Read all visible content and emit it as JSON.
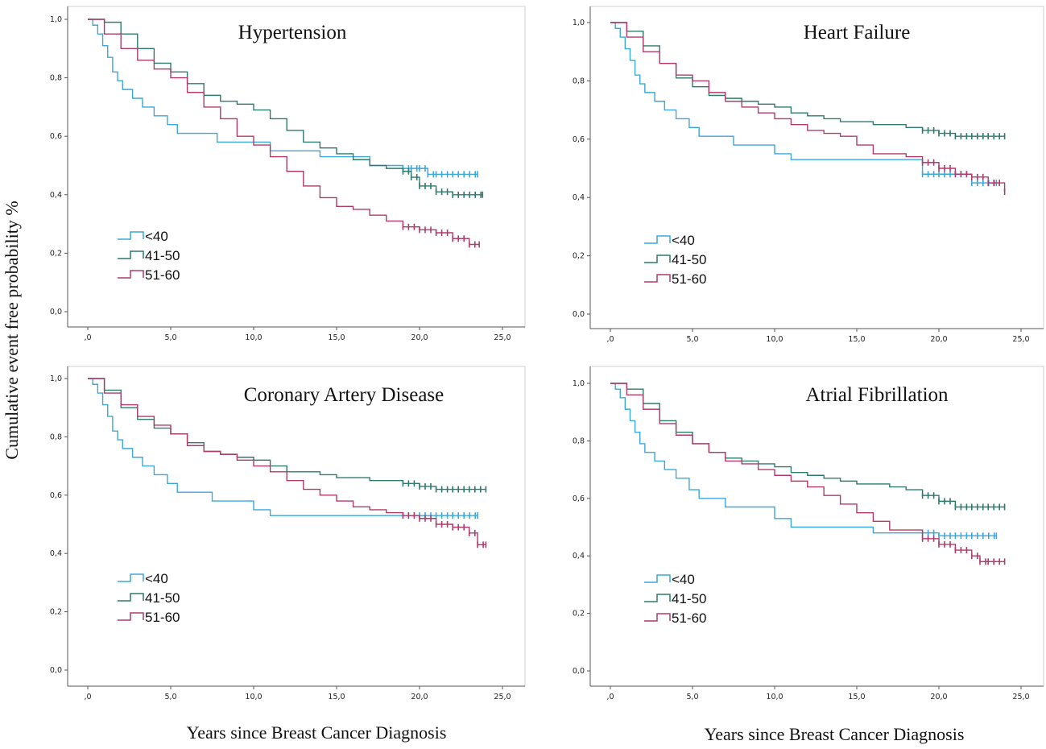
{
  "figure": {
    "ylabel": "Cumulative event free probability %",
    "xlabel_left": "Years since Breast Cancer Diagnosis",
    "xlabel_right": "Years since Breast Cancer Diagnosis"
  },
  "legend": {
    "labels": [
      "<40",
      "41-50",
      "51-60"
    ]
  },
  "colors": {
    "lt40": "#3ba7dc",
    "41_50": "#2e7a6c",
    "51_60": "#b03a6c"
  },
  "chart_data": [
    {
      "type": "line",
      "title": "Hypertension",
      "xlim": [
        -1.2,
        25.2
      ],
      "ylim": [
        0,
        1
      ],
      "xticks": [
        0,
        5,
        10,
        15,
        20,
        25
      ],
      "xtick_labels": [
        ",0",
        "5,0",
        "10,0",
        "15,0",
        "20,0",
        "25,0"
      ],
      "yticks": [
        0,
        0.2,
        0.4,
        0.6,
        0.8,
        1.0
      ],
      "ytick_labels": [
        "0,0",
        "0,2",
        "0,4",
        "0,6",
        "0,8",
        "1,0"
      ],
      "series": [
        {
          "name": "<40",
          "x": [
            0,
            0.3,
            0.6,
            0.9,
            1.2,
            1.5,
            1.8,
            2.1,
            2.7,
            3.3,
            4.0,
            4.8,
            5.4,
            7.8,
            9.5,
            11.0,
            14.0,
            17.0,
            19.0,
            19.5,
            20.0,
            20.5,
            21.0,
            22.0,
            23.5
          ],
          "y": [
            1.0,
            0.98,
            0.95,
            0.91,
            0.87,
            0.82,
            0.79,
            0.76,
            0.73,
            0.7,
            0.67,
            0.64,
            0.61,
            0.58,
            0.58,
            0.55,
            0.53,
            0.5,
            0.49,
            0.49,
            0.49,
            0.47,
            0.47,
            0.47,
            0.47
          ]
        },
        {
          "name": "41-50",
          "x": [
            0,
            1.0,
            2.0,
            3.0,
            4.0,
            5.0,
            6.0,
            7.0,
            8.0,
            9.0,
            10.0,
            11.0,
            12.0,
            13.0,
            14.0,
            15.0,
            16.0,
            17.0,
            18.0,
            19.0,
            19.5,
            20.0,
            21.0,
            22.0,
            23.8
          ],
          "y": [
            1.0,
            0.99,
            0.95,
            0.9,
            0.85,
            0.82,
            0.78,
            0.74,
            0.72,
            0.71,
            0.69,
            0.66,
            0.62,
            0.58,
            0.56,
            0.54,
            0.52,
            0.5,
            0.49,
            0.48,
            0.46,
            0.43,
            0.41,
            0.4,
            0.4
          ]
        },
        {
          "name": "51-60",
          "x": [
            0,
            1.0,
            2.0,
            3.0,
            4.0,
            5.0,
            6.0,
            7.0,
            8.0,
            9.0,
            10.0,
            11.0,
            12.0,
            13.0,
            14.0,
            15.0,
            16.0,
            17.0,
            18.0,
            19.0,
            20.0,
            21.0,
            22.0,
            23.0,
            23.6
          ],
          "y": [
            1.0,
            0.95,
            0.9,
            0.86,
            0.83,
            0.8,
            0.75,
            0.7,
            0.66,
            0.6,
            0.57,
            0.53,
            0.48,
            0.43,
            0.39,
            0.36,
            0.35,
            0.33,
            0.31,
            0.29,
            0.28,
            0.27,
            0.25,
            0.23,
            0.23
          ]
        }
      ]
    },
    {
      "type": "line",
      "title": "Heart Failure",
      "xlim": [
        -1.2,
        25.2
      ],
      "ylim": [
        0,
        1
      ],
      "xticks": [
        0,
        5,
        10,
        15,
        20,
        25
      ],
      "xtick_labels": [
        ",0",
        "5,0",
        "10,0",
        "15,0",
        "20,0",
        "25,0"
      ],
      "yticks": [
        0,
        0.2,
        0.4,
        0.6,
        0.8,
        1.0
      ],
      "ytick_labels": [
        "0,0",
        "0,2",
        "0,4",
        "0,6",
        "0,8",
        "1,0"
      ],
      "series": [
        {
          "name": "<40",
          "x": [
            0,
            0.3,
            0.6,
            0.9,
            1.2,
            1.5,
            1.8,
            2.1,
            2.7,
            3.3,
            4.0,
            4.8,
            5.4,
            7.5,
            10.0,
            11.0,
            14.0,
            17.0,
            19.0,
            20.0,
            21.0,
            22.0,
            23.5
          ],
          "y": [
            1.0,
            0.98,
            0.95,
            0.91,
            0.87,
            0.82,
            0.79,
            0.76,
            0.73,
            0.7,
            0.67,
            0.64,
            0.61,
            0.58,
            0.55,
            0.53,
            0.53,
            0.53,
            0.48,
            0.48,
            0.48,
            0.45,
            0.45
          ]
        },
        {
          "name": "41-50",
          "x": [
            0,
            1.0,
            2.0,
            3.0,
            4.0,
            5.0,
            6.0,
            7.0,
            8.0,
            9.0,
            10.0,
            11.0,
            12.0,
            13.0,
            14.0,
            15.0,
            16.0,
            17.0,
            18.0,
            19.0,
            20.0,
            21.0,
            22.0,
            23.0,
            24.0
          ],
          "y": [
            1.0,
            0.97,
            0.92,
            0.86,
            0.81,
            0.78,
            0.75,
            0.74,
            0.73,
            0.72,
            0.71,
            0.69,
            0.68,
            0.67,
            0.66,
            0.66,
            0.65,
            0.65,
            0.64,
            0.63,
            0.62,
            0.61,
            0.61,
            0.61,
            0.61
          ]
        },
        {
          "name": "51-60",
          "x": [
            0,
            1.0,
            2.0,
            3.0,
            4.0,
            5.0,
            6.0,
            7.0,
            8.0,
            9.0,
            10.0,
            11.0,
            12.0,
            13.0,
            14.0,
            15.0,
            16.0,
            17.0,
            18.0,
            19.0,
            20.0,
            21.0,
            22.0,
            23.0,
            24.0
          ],
          "y": [
            1.0,
            0.95,
            0.9,
            0.86,
            0.82,
            0.8,
            0.76,
            0.73,
            0.71,
            0.69,
            0.67,
            0.65,
            0.63,
            0.62,
            0.61,
            0.58,
            0.55,
            0.55,
            0.54,
            0.52,
            0.5,
            0.48,
            0.47,
            0.45,
            0.42
          ]
        }
      ]
    },
    {
      "type": "line",
      "title": "Coronary Artery Disease",
      "xlim": [
        -1.2,
        25.2
      ],
      "ylim": [
        0,
        1
      ],
      "xticks": [
        0,
        5,
        10,
        15,
        20,
        25
      ],
      "xtick_labels": [
        ",0",
        "5,0",
        "10,0",
        "15,0",
        "20,0",
        "25,0"
      ],
      "yticks": [
        0,
        0.2,
        0.4,
        0.6,
        0.8,
        1.0
      ],
      "ytick_labels": [
        "0,0",
        "0,2",
        "0,4",
        "0,6",
        "0,8",
        "1,0"
      ],
      "series": [
        {
          "name": "<40",
          "x": [
            0,
            0.3,
            0.6,
            0.9,
            1.2,
            1.5,
            1.8,
            2.1,
            2.7,
            3.3,
            4.0,
            4.8,
            5.4,
            7.5,
            10.0,
            11.0,
            14.0,
            17.0,
            19.0,
            20.0,
            21.0,
            22.0,
            23.5
          ],
          "y": [
            1.0,
            0.98,
            0.95,
            0.91,
            0.87,
            0.82,
            0.79,
            0.76,
            0.73,
            0.7,
            0.67,
            0.64,
            0.61,
            0.58,
            0.55,
            0.53,
            0.53,
            0.53,
            0.53,
            0.53,
            0.53,
            0.53,
            0.53
          ]
        },
        {
          "name": "41-50",
          "x": [
            0,
            1.0,
            2.0,
            3.0,
            4.0,
            5.0,
            6.0,
            7.0,
            8.0,
            9.0,
            10.0,
            11.0,
            12.0,
            13.0,
            14.0,
            15.0,
            16.0,
            17.0,
            18.0,
            19.0,
            20.0,
            21.0,
            22.0,
            23.0,
            24.0
          ],
          "y": [
            1.0,
            0.96,
            0.9,
            0.86,
            0.83,
            0.81,
            0.78,
            0.75,
            0.74,
            0.73,
            0.72,
            0.7,
            0.68,
            0.68,
            0.67,
            0.66,
            0.66,
            0.65,
            0.65,
            0.64,
            0.63,
            0.62,
            0.62,
            0.62,
            0.62
          ]
        },
        {
          "name": "51-60",
          "x": [
            0,
            1.0,
            2.0,
            3.0,
            4.0,
            5.0,
            6.0,
            7.0,
            8.0,
            9.0,
            10.0,
            11.0,
            12.0,
            13.0,
            14.0,
            15.0,
            16.0,
            17.0,
            18.0,
            19.0,
            20.0,
            21.0,
            22.0,
            23.0,
            23.5,
            24.0
          ],
          "y": [
            1.0,
            0.95,
            0.91,
            0.87,
            0.84,
            0.81,
            0.77,
            0.75,
            0.74,
            0.72,
            0.7,
            0.68,
            0.65,
            0.62,
            0.6,
            0.58,
            0.56,
            0.55,
            0.54,
            0.53,
            0.52,
            0.5,
            0.49,
            0.47,
            0.43,
            0.43
          ]
        }
      ]
    },
    {
      "type": "line",
      "title": "Atrial Fibrillation",
      "xlim": [
        -1.2,
        25.2
      ],
      "ylim": [
        0,
        1
      ],
      "xticks": [
        0,
        5,
        10,
        15,
        20,
        25
      ],
      "xtick_labels": [
        ",0",
        "5,0",
        "10,0",
        "15,0",
        "20,0",
        "25,0"
      ],
      "yticks": [
        0,
        0.2,
        0.4,
        0.6,
        0.8,
        1.0
      ],
      "ytick_labels": [
        "0,0",
        "0,2",
        "0,4",
        "0,6",
        "0,8",
        "1,0"
      ],
      "series": [
        {
          "name": "<40",
          "x": [
            0,
            0.3,
            0.6,
            0.9,
            1.2,
            1.5,
            1.8,
            2.1,
            2.7,
            3.3,
            4.0,
            4.8,
            5.4,
            7.0,
            10.0,
            11.0,
            14.0,
            16.0,
            19.0,
            20.0,
            21.0,
            22.0,
            23.5
          ],
          "y": [
            1.0,
            0.98,
            0.95,
            0.91,
            0.87,
            0.83,
            0.79,
            0.76,
            0.73,
            0.7,
            0.67,
            0.63,
            0.6,
            0.57,
            0.53,
            0.5,
            0.5,
            0.48,
            0.48,
            0.47,
            0.47,
            0.47,
            0.47
          ]
        },
        {
          "name": "41-50",
          "x": [
            0,
            1.0,
            2.0,
            3.0,
            4.0,
            5.0,
            6.0,
            7.0,
            8.0,
            9.0,
            10.0,
            11.0,
            12.0,
            13.0,
            14.0,
            15.0,
            16.0,
            17.0,
            18.0,
            19.0,
            20.0,
            21.0,
            22.0,
            23.0,
            24.0
          ],
          "y": [
            1.0,
            0.98,
            0.93,
            0.87,
            0.83,
            0.79,
            0.76,
            0.74,
            0.73,
            0.72,
            0.71,
            0.69,
            0.68,
            0.67,
            0.66,
            0.65,
            0.65,
            0.64,
            0.63,
            0.61,
            0.59,
            0.57,
            0.57,
            0.57,
            0.57
          ]
        },
        {
          "name": "51-60",
          "x": [
            0,
            1.0,
            2.0,
            3.0,
            4.0,
            5.0,
            6.0,
            7.0,
            8.0,
            9.0,
            10.0,
            11.0,
            12.0,
            13.0,
            14.0,
            15.0,
            16.0,
            17.0,
            18.0,
            19.0,
            20.0,
            21.0,
            22.0,
            22.5,
            23.0,
            24.0
          ],
          "y": [
            1.0,
            0.96,
            0.91,
            0.86,
            0.82,
            0.79,
            0.76,
            0.73,
            0.72,
            0.7,
            0.68,
            0.66,
            0.64,
            0.61,
            0.58,
            0.55,
            0.52,
            0.49,
            0.49,
            0.46,
            0.44,
            0.42,
            0.4,
            0.38,
            0.38,
            0.38
          ]
        }
      ]
    }
  ]
}
